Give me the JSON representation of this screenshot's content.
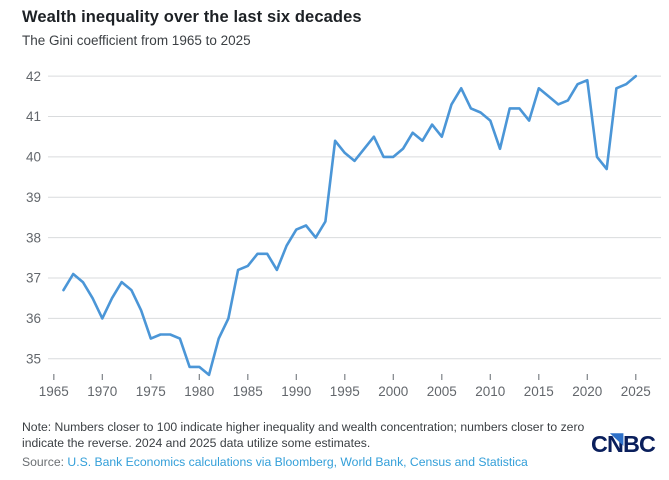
{
  "chart_data": {
    "type": "line",
    "title": "Wealth inequality over the last six decades",
    "subtitle": "The Gini coefficient from 1965 to 2025",
    "series_name": "Gini coefficient",
    "x": [
      1966,
      1967,
      1968,
      1969,
      1970,
      1971,
      1972,
      1973,
      1974,
      1975,
      1976,
      1977,
      1978,
      1979,
      1980,
      1981,
      1982,
      1983,
      1984,
      1985,
      1986,
      1987,
      1988,
      1989,
      1990,
      1991,
      1992,
      1993,
      1994,
      1995,
      1996,
      1997,
      1998,
      1999,
      2000,
      2001,
      2002,
      2003,
      2004,
      2005,
      2006,
      2007,
      2008,
      2009,
      2010,
      2011,
      2012,
      2013,
      2014,
      2015,
      2016,
      2017,
      2018,
      2019,
      2020,
      2021,
      2022,
      2023,
      2024,
      2025
    ],
    "values": [
      36.7,
      37.1,
      36.9,
      36.5,
      36.0,
      36.5,
      36.9,
      36.7,
      36.2,
      35.5,
      35.6,
      35.6,
      35.5,
      34.8,
      34.8,
      34.6,
      35.5,
      36.0,
      37.2,
      37.3,
      37.6,
      37.6,
      37.2,
      37.8,
      38.2,
      38.3,
      38.0,
      38.4,
      40.4,
      40.1,
      39.9,
      40.2,
      40.5,
      40.0,
      40.0,
      40.2,
      40.6,
      40.4,
      40.8,
      40.5,
      41.3,
      41.7,
      41.2,
      41.1,
      40.9,
      40.2,
      41.2,
      41.2,
      40.9,
      41.7,
      41.5,
      41.3,
      41.4,
      41.8,
      41.9,
      40.0,
      39.7,
      41.7,
      41.8,
      42.0
    ],
    "x_ticks": [
      1965,
      1970,
      1975,
      1980,
      1985,
      1990,
      1995,
      2000,
      2005,
      2010,
      2015,
      2020,
      2025
    ],
    "y_ticks": [
      35,
      36,
      37,
      38,
      39,
      40,
      41,
      42
    ],
    "xlim": [
      1964.4,
      2027.6
    ],
    "ylim": [
      34.4,
      42.4
    ],
    "xlabel": "",
    "ylabel": "",
    "grid": "horizontal",
    "legend": "none",
    "line_color": "#4b96d7"
  },
  "footer": {
    "note": "Note: Numbers closer to 100 indicate higher inequality and wealth concentration; numbers closer to zero indicate the reverse. 2024 and 2025 data utilize some estimates.",
    "source_label": "Source:",
    "source_link_text": "U.S. Bank Economics calculations via Bloomberg, World Bank, Census and Statistica",
    "logo_text": "CNBC"
  },
  "colors": {
    "accent": "#4b96d7",
    "link": "#339fd9",
    "logo_navy": "#0a1f5c",
    "logo_blue": "#2e70c8",
    "grid": "#d9dbdd",
    "axis_text": "#63676c",
    "title_text": "#1d2125",
    "body_text": "#3c4044"
  }
}
